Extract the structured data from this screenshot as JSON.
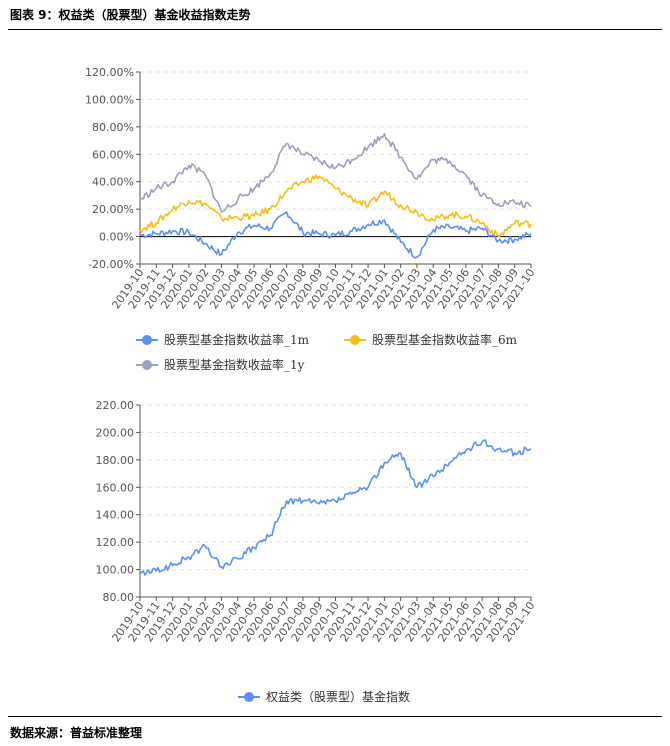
{
  "figure_title": "图表 9：权益类（股票型）基金收益指数走势",
  "source": "数据来源：普益标准整理",
  "chart_data": [
    {
      "type": "line",
      "y_format": "percent",
      "ylim": [
        -20,
        120
      ],
      "yticks": [
        "120.00%",
        "100.00%",
        "80.00%",
        "60.00%",
        "40.00%",
        "20.00%",
        "0.00%",
        "-20.00%"
      ],
      "xticks": [
        "2019-10",
        "2019-11",
        "2019-12",
        "2020-01",
        "2020-02",
        "2020-03",
        "2020-04",
        "2020-05",
        "2020-06",
        "2020-07",
        "2020-08",
        "2020-09",
        "2020-10",
        "2020-11",
        "2020-12",
        "2021-01",
        "2021-02",
        "2021-03",
        "2021-04",
        "2021-05",
        "2021-06",
        "2021-07",
        "2021-08",
        "2021-09",
        "2021-10"
      ],
      "x": [
        "2019-10",
        "2019-11",
        "2019-12",
        "2020-01",
        "2020-02",
        "2020-03",
        "2020-04",
        "2020-05",
        "2020-06",
        "2020-07",
        "2020-08",
        "2020-09",
        "2020-10",
        "2020-11",
        "2020-12",
        "2021-01",
        "2021-02",
        "2021-03",
        "2021-04",
        "2021-05",
        "2021-06",
        "2021-07",
        "2021-08",
        "2021-09",
        "2021-10"
      ],
      "series": [
        {
          "name": "股票型基金指数收益率_1m",
          "color": "#5b8ff9",
          "values": [
            1,
            2,
            4,
            3,
            -5,
            -13,
            3,
            8,
            6,
            18,
            3,
            2,
            1,
            4,
            9,
            12,
            -4,
            -15,
            5,
            7,
            4,
            6,
            -3,
            -2,
            2
          ]
        },
        {
          "name": "股票型基金指数收益率_6m",
          "color": "#f6bd16",
          "values": [
            5,
            10,
            20,
            26,
            24,
            13,
            14,
            15,
            20,
            33,
            40,
            44,
            35,
            28,
            22,
            33,
            23,
            18,
            12,
            16,
            15,
            10,
            0,
            10,
            9
          ]
        },
        {
          "name": "股票型基金指数收益率_1y",
          "color": "#99a1bf",
          "values": [
            27,
            35,
            40,
            52,
            45,
            18,
            27,
            35,
            46,
            68,
            60,
            55,
            50,
            56,
            65,
            75,
            58,
            42,
            56,
            55,
            45,
            30,
            24,
            25,
            22
          ]
        }
      ]
    },
    {
      "type": "line",
      "ylim": [
        80,
        220
      ],
      "yticks": [
        "220.00",
        "200.00",
        "180.00",
        "160.00",
        "140.00",
        "120.00",
        "100.00",
        "80.00"
      ],
      "xticks": [
        "2019-10",
        "2019-11",
        "2019-12",
        "2020-01",
        "2020-02",
        "2020-03",
        "2020-04",
        "2020-05",
        "2020-06",
        "2020-07",
        "2020-08",
        "2020-09",
        "2020-10",
        "2020-11",
        "2020-12",
        "2021-01",
        "2021-02",
        "2021-03",
        "2021-04",
        "2021-05",
        "2021-06",
        "2021-07",
        "2021-08",
        "2021-09",
        "2021-10"
      ],
      "x": [
        "2019-10",
        "2019-11",
        "2019-12",
        "2020-01",
        "2020-02",
        "2020-03",
        "2020-04",
        "2020-05",
        "2020-06",
        "2020-07",
        "2020-08",
        "2020-09",
        "2020-10",
        "2020-11",
        "2020-12",
        "2021-01",
        "2021-02",
        "2021-03",
        "2021-04",
        "2021-05",
        "2021-06",
        "2021-07",
        "2021-08",
        "2021-09",
        "2021-10"
      ],
      "series": [
        {
          "name": "权益类（股票型）基金指数",
          "color": "#5b8ff9",
          "values": [
            97,
            99,
            103,
            109,
            117,
            102,
            108,
            116,
            125,
            150,
            150,
            148,
            150,
            155,
            160,
            178,
            185,
            160,
            168,
            178,
            187,
            193,
            188,
            185,
            188
          ]
        }
      ]
    }
  ]
}
